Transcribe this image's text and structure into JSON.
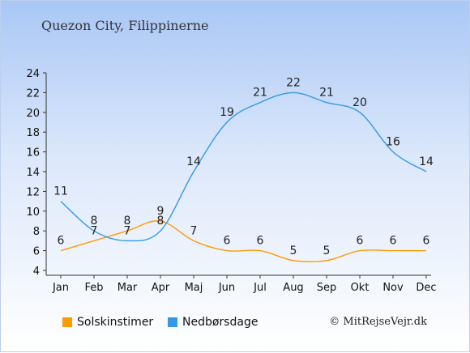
{
  "title": "Quezon City, Filippinerne",
  "credit": "© MitRejseVejr.dk",
  "chart_data": {
    "type": "line",
    "categories": [
      "Jan",
      "Feb",
      "Mar",
      "Apr",
      "Maj",
      "Jun",
      "Jul",
      "Aug",
      "Sep",
      "Okt",
      "Nov",
      "Dec"
    ],
    "series": [
      {
        "name": "Solskinstimer",
        "color": "#ff9900",
        "values": [
          6,
          7,
          8,
          9,
          7,
          6,
          6,
          5,
          5,
          6,
          6,
          6
        ]
      },
      {
        "name": "Nedbørsdage",
        "color": "#3399e6",
        "values": [
          11,
          8,
          7,
          8,
          14,
          19,
          21,
          22,
          21,
          20,
          16,
          14
        ]
      }
    ],
    "yticks": [
      4,
      6,
      8,
      10,
      12,
      14,
      16,
      18,
      20,
      22,
      24
    ],
    "ylim": [
      4,
      24
    ],
    "grid": false,
    "legend": "bottom"
  }
}
